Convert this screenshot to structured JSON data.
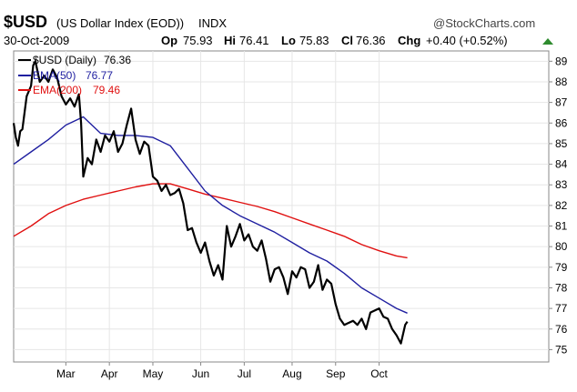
{
  "header": {
    "symbol": "$USD",
    "name": "(US Dollar Index (EOD))",
    "exchange": "INDX",
    "watermark": "@StockCharts.com",
    "date": "30-Oct-2009",
    "quote": {
      "op_label": "Op",
      "op": "75.93",
      "hi_label": "Hi",
      "hi": "76.41",
      "lo_label": "Lo",
      "lo": "75.83",
      "cl_label": "Cl",
      "cl": "76.36",
      "chg_label": "Chg",
      "chg": "+0.40 (+0.52%)"
    },
    "chg_color": "#2e8b2e"
  },
  "legend": [
    {
      "label": "$USD (Daily)",
      "value": "76.36",
      "color": "#000000"
    },
    {
      "label": "EMA(50)",
      "value": "76.77",
      "color": "#1f1fa0"
    },
    {
      "label": "EMA(200)",
      "value": "79.46",
      "color": "#e01010"
    }
  ],
  "chart_data": {
    "type": "line",
    "ylim": [
      74.4,
      89.5
    ],
    "xlim": [
      0,
      12.3
    ],
    "y_ticks": [
      75,
      76,
      77,
      78,
      79,
      80,
      81,
      82,
      83,
      84,
      85,
      86,
      87,
      88,
      89
    ],
    "x_ticks": [
      {
        "label": "Mar",
        "x": 1.2
      },
      {
        "label": "Apr",
        "x": 2.2
      },
      {
        "label": "May",
        "x": 3.2
      },
      {
        "label": "Jun",
        "x": 4.3
      },
      {
        "label": "Jul",
        "x": 5.3
      },
      {
        "label": "Aug",
        "x": 6.4
      },
      {
        "label": "Sep",
        "x": 7.4
      },
      {
        "label": "Oct",
        "x": 8.4
      }
    ],
    "series": [
      {
        "name": "$USD (Daily)",
        "color": "#000000",
        "x": [
          0.0,
          0.05,
          0.1,
          0.15,
          0.2,
          0.3,
          0.4,
          0.45,
          0.5,
          0.55,
          0.6,
          0.7,
          0.8,
          0.9,
          1.0,
          1.1,
          1.2,
          1.3,
          1.4,
          1.5,
          1.55,
          1.6,
          1.7,
          1.8,
          1.9,
          2.0,
          2.1,
          2.2,
          2.3,
          2.4,
          2.5,
          2.6,
          2.7,
          2.8,
          2.9,
          3.0,
          3.1,
          3.2,
          3.3,
          3.4,
          3.5,
          3.6,
          3.7,
          3.8,
          3.9,
          4.0,
          4.1,
          4.2,
          4.3,
          4.4,
          4.5,
          4.6,
          4.7,
          4.8,
          4.9,
          5.0,
          5.1,
          5.2,
          5.3,
          5.4,
          5.5,
          5.6,
          5.7,
          5.8,
          5.9,
          6.0,
          6.1,
          6.2,
          6.3,
          6.4,
          6.5,
          6.6,
          6.7,
          6.8,
          6.9,
          7.0,
          7.1,
          7.2,
          7.3,
          7.4,
          7.5,
          7.6,
          7.7,
          7.8,
          7.9,
          8.0,
          8.1,
          8.2,
          8.3,
          8.4,
          8.5,
          8.6,
          8.7,
          8.8,
          8.9,
          9.0,
          9.05
        ],
        "values": [
          86.0,
          85.3,
          84.9,
          85.6,
          85.7,
          87.3,
          87.8,
          88.8,
          89.0,
          88.5,
          88.0,
          88.3,
          88.0,
          88.6,
          88.2,
          87.3,
          86.9,
          87.2,
          86.8,
          87.4,
          86.0,
          83.4,
          84.3,
          84.0,
          85.2,
          84.6,
          85.4,
          85.1,
          85.6,
          84.6,
          85.0,
          85.9,
          86.7,
          85.2,
          84.5,
          85.1,
          84.9,
          83.4,
          83.2,
          82.7,
          83.0,
          82.5,
          82.6,
          82.8,
          82.1,
          80.8,
          80.9,
          80.2,
          79.7,
          80.2,
          79.3,
          78.6,
          79.1,
          78.4,
          81.0,
          80.0,
          80.5,
          81.1,
          80.3,
          80.6,
          80.0,
          79.8,
          80.3,
          79.4,
          78.3,
          78.9,
          79.0,
          78.5,
          77.7,
          78.8,
          78.5,
          79.0,
          78.9,
          78.0,
          78.3,
          79.1,
          77.9,
          78.4,
          78.2,
          77.2,
          76.5,
          76.2,
          76.3,
          76.4,
          76.2,
          76.5,
          76.0,
          76.8,
          76.9,
          77.0,
          76.6,
          76.5,
          76.0,
          75.7,
          75.3,
          76.2,
          76.36
        ]
      },
      {
        "name": "EMA(50)",
        "color": "#1f1fa0",
        "x": [
          0.0,
          0.4,
          0.8,
          1.2,
          1.6,
          2.0,
          2.4,
          2.8,
          3.2,
          3.6,
          4.0,
          4.4,
          4.8,
          5.2,
          5.6,
          6.0,
          6.4,
          6.8,
          7.2,
          7.6,
          8.0,
          8.4,
          8.8,
          9.05
        ],
        "values": [
          84.0,
          84.6,
          85.2,
          85.9,
          86.3,
          85.5,
          85.4,
          85.4,
          85.3,
          84.9,
          83.8,
          82.7,
          82.0,
          81.5,
          81.1,
          80.7,
          80.2,
          79.7,
          79.3,
          78.7,
          78.0,
          77.5,
          77.0,
          76.77
        ]
      },
      {
        "name": "EMA(200)",
        "color": "#e01010",
        "x": [
          0.0,
          0.4,
          0.8,
          1.2,
          1.6,
          2.0,
          2.4,
          2.8,
          3.2,
          3.6,
          4.0,
          4.4,
          4.8,
          5.2,
          5.6,
          6.0,
          6.4,
          6.8,
          7.2,
          7.6,
          8.0,
          8.4,
          8.8,
          9.05
        ],
        "values": [
          80.5,
          81.0,
          81.6,
          82.0,
          82.3,
          82.5,
          82.7,
          82.9,
          83.05,
          83.05,
          82.8,
          82.55,
          82.35,
          82.15,
          81.95,
          81.7,
          81.4,
          81.1,
          80.8,
          80.5,
          80.1,
          79.8,
          79.55,
          79.46
        ]
      }
    ]
  }
}
